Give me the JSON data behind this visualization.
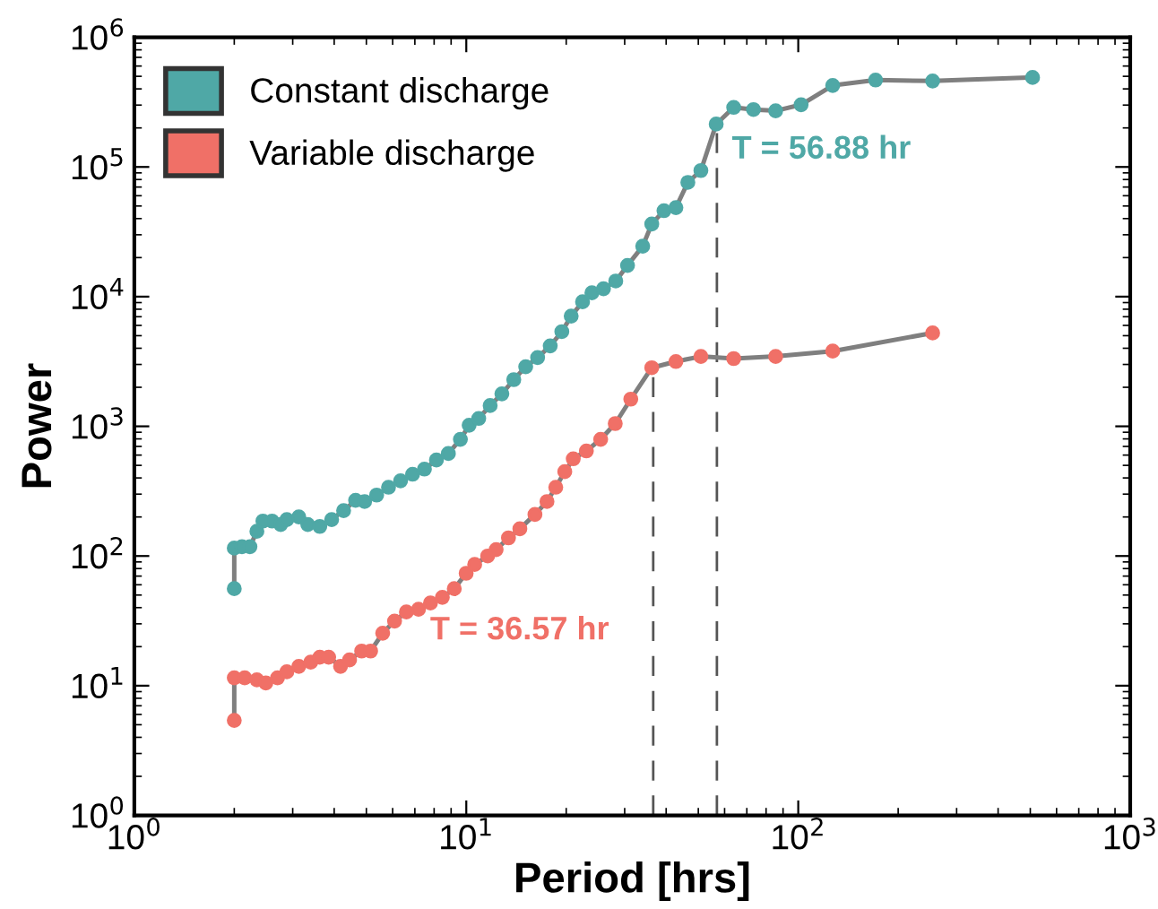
{
  "chart_data": {
    "type": "line",
    "xlabel": "Period [hrs]",
    "ylabel": "Power",
    "log": "xy",
    "marker": "circle",
    "legend": "top left",
    "grid": false,
    "xlim": [
      1,
      1000
    ],
    "ylim": [
      1,
      1000000
    ],
    "xticks": [
      {
        "value": 1,
        "label": "10$^{0}$"
      },
      {
        "value": 10,
        "label": "10$^{1}$"
      },
      {
        "value": 100,
        "label": "10$^{2}$"
      },
      {
        "value": 1000,
        "label": "10$^{3}$"
      }
    ],
    "yticks": [
      {
        "value": 1,
        "label": "10$^{0}$"
      },
      {
        "value": 10,
        "label": "10$^{1}$"
      },
      {
        "value": 100,
        "label": "10$^{2}$"
      },
      {
        "value": 1000,
        "label": "10$^{3}$"
      },
      {
        "value": 10000,
        "label": "10$^{4}$"
      },
      {
        "value": 100000,
        "label": "10$^{5}$"
      },
      {
        "value": 1000000,
        "label": "10$^{6}$"
      }
    ],
    "series": [
      {
        "name": "Constant discharge",
        "color": "#4fa8a6",
        "x": [
          2.0,
          2.0,
          2.11,
          2.23,
          2.34,
          2.44,
          2.6,
          2.76,
          2.88,
          3.13,
          3.33,
          3.62,
          3.93,
          4.27,
          4.64,
          4.94,
          5.37,
          5.83,
          6.34,
          6.89,
          7.48,
          8.13,
          8.83,
          9.6,
          10.2,
          10.9,
          11.8,
          12.8,
          13.9,
          15.1,
          16.4,
          17.9,
          19.4,
          20.7,
          22.4,
          23.9,
          25.9,
          28.2,
          30.6,
          34.0,
          36.2,
          39.4,
          42.8,
          46.5,
          50.9,
          56.6,
          63.9,
          73.3,
          85.5,
          102,
          127,
          171,
          254,
          508
        ],
        "values": [
          56,
          115,
          118,
          118,
          155,
          186,
          186,
          175,
          191,
          200,
          175,
          169,
          191,
          224,
          269,
          263,
          295,
          339,
          380,
          427,
          468,
          550,
          617,
          794,
          1020,
          1150,
          1445,
          1780,
          2290,
          2880,
          3390,
          4170,
          5370,
          7080,
          9120,
          10700,
          11500,
          13200,
          17400,
          24500,
          36300,
          46000,
          48600,
          76000,
          93800,
          214000,
          288000,
          277000,
          271000,
          302000,
          425000,
          468000,
          460000,
          490000
        ]
      },
      {
        "name": "Variable discharge",
        "color": "#f07067",
        "x": [
          2.0,
          2.0,
          2.15,
          2.34,
          2.49,
          2.7,
          2.88,
          3.13,
          3.4,
          3.62,
          3.85,
          4.18,
          4.45,
          4.84,
          5.15,
          5.6,
          6.08,
          6.6,
          7.18,
          7.8,
          8.47,
          9.2,
          9.99,
          10.6,
          11.6,
          12.3,
          13.4,
          14.5,
          16.1,
          17.5,
          18.6,
          19.8,
          21.0,
          23.0,
          25.4,
          28.1,
          31.3,
          36.2,
          42.8,
          50.9,
          63.9,
          85.5,
          127,
          254
        ],
        "values": [
          5.4,
          11.5,
          11.5,
          11.1,
          10.5,
          11.5,
          12.8,
          14.1,
          15.2,
          16.6,
          16.6,
          14.1,
          15.8,
          18.5,
          18.5,
          25.4,
          31.5,
          37,
          38.9,
          43.4,
          48,
          56,
          73.6,
          86,
          100,
          112,
          138,
          162,
          209,
          263,
          339,
          447,
          562,
          646,
          794,
          1050,
          1620,
          2830,
          3160,
          3460,
          3330,
          3460,
          3800,
          5250
        ]
      }
    ],
    "ref_lines": [
      {
        "axis": "x",
        "value": 56.88,
        "color": "#555555",
        "line_style": "dashed"
      },
      {
        "axis": "x",
        "value": 36.57,
        "color": "#555555",
        "line_style": "dashed"
      }
    ],
    "annotations": [
      "T = 56.88 hr",
      "T = 36.57 hr"
    ]
  }
}
